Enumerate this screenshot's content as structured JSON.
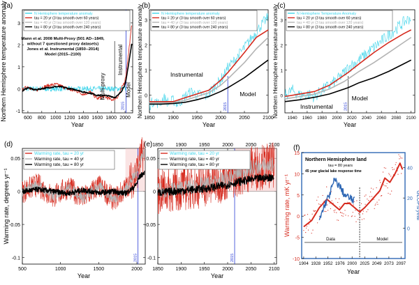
{
  "chart_data": [
    {
      "id": "a",
      "panel_label": "(a)",
      "type": "line",
      "xlabel": "Year",
      "ylabel": "Northern Hemisphere temperature anomaly",
      "xlim": [
        520,
        2110
      ],
      "ylim": [
        -1.1,
        3.6
      ],
      "xticks": [
        600,
        800,
        1000,
        1200,
        1400,
        1600,
        1800,
        2000
      ],
      "yticks": [
        -1,
        0,
        1,
        2,
        3
      ],
      "legend": [
        "N Hemisphere temperature anomaly",
        "tau = 20 yr (3 tau smooth over 60 years)",
        "tau = 40 yr (3 tau smooth over 120 years)",
        "tau = 80 yr (3 tau smooth over 240 years)"
      ],
      "annotation_box": [
        "Mann et al. 2008 Multi-Proxy (501 AD--1849,",
        "without 7 questioned proxy datasets)",
        "Jones et al. Instrumental (1850--2014)",
        "Model (2015--2100)"
      ],
      "labels": [
        "Multi-proxy",
        "Instrumental",
        "Model",
        "2015"
      ],
      "marker_year": 2015,
      "series": [
        {
          "name": "tau = 80 yr (3 tau smooth over 240 years)",
          "x": [
            520,
            600,
            700,
            800,
            900,
            1000,
            1100,
            1200,
            1300,
            1400,
            1500,
            1600,
            1700,
            1800,
            1850,
            1900,
            1950,
            2000,
            2015,
            2050,
            2100
          ],
          "y": [
            -0.1,
            0.05,
            -0.05,
            0.0,
            0.05,
            0.1,
            0.08,
            0.0,
            -0.05,
            -0.15,
            -0.2,
            -0.3,
            -0.3,
            -0.35,
            -0.4,
            -0.3,
            -0.1,
            0.2,
            0.4,
            1.1,
            2.1
          ]
        },
        {
          "name": "tau = 20 yr (3 tau smooth over 60 years)",
          "x": [
            520,
            600,
            700,
            800,
            900,
            1000,
            1100,
            1200,
            1300,
            1400,
            1500,
            1600,
            1700,
            1800,
            1850,
            1900,
            1950,
            2000,
            2015,
            2050,
            2100
          ],
          "y": [
            -0.05,
            0.1,
            -0.1,
            0.05,
            0.15,
            0.2,
            0.1,
            -0.05,
            -0.1,
            -0.25,
            -0.15,
            -0.45,
            -0.35,
            -0.5,
            -0.45,
            -0.35,
            0.0,
            0.4,
            0.7,
            1.6,
            3.0
          ]
        }
      ]
    },
    {
      "id": "b",
      "panel_label": "(b)",
      "type": "line",
      "xlabel": "Year",
      "ylabel": "Northern Hemisphere temperature anomaly",
      "xlim": [
        1850,
        2100
      ],
      "ylim": [
        -0.7,
        3.4
      ],
      "xticks": [
        1850,
        1900,
        1950,
        2000,
        2050,
        2100
      ],
      "yticks": [
        0,
        1,
        2,
        3
      ],
      "legend": [
        "N Hemisphere temperature anomaly",
        "tau = 20 yr (3 tau smooth over 60 years)",
        "tau = 40 yr (3 tau smooth over 120 years)",
        "tau = 80 yr (3 tau smooth over 240 years)"
      ],
      "labels": [
        "Instrumental",
        "Model",
        "2015"
      ],
      "marker_year": 2015,
      "series": [
        {
          "name": "N Hemisphere temperature anomaly",
          "x": [
            1850,
            1860,
            1870,
            1880,
            1890,
            1900,
            1910,
            1920,
            1930,
            1940,
            1950,
            1960,
            1970,
            1980,
            1990,
            2000,
            2010,
            2015,
            2030,
            2050,
            2070,
            2090,
            2100
          ],
          "y": [
            -0.4,
            -0.2,
            -0.35,
            -0.1,
            -0.3,
            -0.2,
            -0.35,
            -0.15,
            0.05,
            0.15,
            0.0,
            0.05,
            -0.05,
            0.2,
            0.4,
            0.6,
            0.9,
            1.1,
            1.4,
            1.9,
            2.4,
            2.9,
            3.1
          ]
        },
        {
          "name": "tau = 20 yr (3 tau smooth over 60 years)",
          "x": [
            1850,
            1875,
            1900,
            1925,
            1950,
            1975,
            2000,
            2015,
            2050,
            2075,
            2100
          ],
          "y": [
            -0.25,
            -0.25,
            -0.25,
            -0.1,
            0.05,
            0.2,
            0.6,
            0.9,
            1.7,
            2.3,
            2.6
          ]
        },
        {
          "name": "tau = 40 yr (3 tau smooth over 120 years)",
          "x": [
            1850,
            1875,
            1900,
            1925,
            1950,
            1975,
            2000,
            2015,
            2050,
            2075,
            2100
          ],
          "y": [
            -0.3,
            -0.3,
            -0.28,
            -0.2,
            -0.05,
            0.1,
            0.4,
            0.65,
            1.3,
            1.85,
            2.3
          ]
        },
        {
          "name": "tau = 80 yr (3 tau smooth over 240 years)",
          "x": [
            1850,
            1875,
            1900,
            1925,
            1950,
            1975,
            2000,
            2015,
            2050,
            2075,
            2100
          ],
          "y": [
            -0.35,
            -0.35,
            -0.33,
            -0.28,
            -0.18,
            -0.05,
            0.15,
            0.3,
            0.7,
            1.05,
            1.4
          ]
        }
      ]
    },
    {
      "id": "c",
      "panel_label": "(c)",
      "type": "line",
      "xlabel": "Year",
      "ylabel": "Northern Hemisphere temperature anomaly",
      "xlim": [
        1930,
        2105
      ],
      "ylim": [
        -0.7,
        3.4
      ],
      "xticks": [
        1940,
        1960,
        1980,
        2000,
        2020,
        2040,
        2060,
        2080,
        2100
      ],
      "yticks": [
        0,
        1,
        2,
        3
      ],
      "legend": [
        "N Hemisphere Temperature Anomaly",
        "tau = 20 yr (3 tau smooth over 60 years)",
        "tau = 40 yr (3 tau smooth over 120 years)",
        "tau = 80 yr (3 tau smooth over 240 years)"
      ],
      "labels": [
        "Instrumental",
        "Model",
        "2015"
      ],
      "marker_year": 2015,
      "series": [
        {
          "name": "N Hemisphere Temperature Anomaly",
          "x": [
            1930,
            1940,
            1950,
            1960,
            1970,
            1980,
            1990,
            2000,
            2010,
            2015,
            2030,
            2050,
            2070,
            2090,
            2100
          ],
          "y": [
            0.0,
            0.2,
            0.0,
            0.05,
            -0.05,
            0.2,
            0.4,
            0.6,
            0.9,
            1.1,
            1.4,
            1.9,
            2.4,
            2.9,
            3.1
          ]
        },
        {
          "name": "tau = 20 yr (3 tau smooth over 60 years)",
          "x": [
            1930,
            1950,
            1970,
            1990,
            2010,
            2015,
            2030,
            2050,
            2070,
            2090,
            2100
          ],
          "y": [
            -0.05,
            0.05,
            0.15,
            0.4,
            0.8,
            0.9,
            1.25,
            1.7,
            2.1,
            2.45,
            2.6
          ]
        },
        {
          "name": "tau = 40 yr (3 tau smooth over 120 years)",
          "x": [
            1930,
            1950,
            1970,
            1990,
            2010,
            2015,
            2030,
            2050,
            2070,
            2090,
            2100
          ],
          "y": [
            -0.15,
            -0.05,
            0.05,
            0.25,
            0.55,
            0.65,
            0.95,
            1.3,
            1.7,
            2.1,
            2.3
          ]
        },
        {
          "name": "tau = 80 yr (3 tau smooth over 240 years)",
          "x": [
            1930,
            1950,
            1970,
            1990,
            2010,
            2015,
            2030,
            2050,
            2070,
            2090,
            2100
          ],
          "y": [
            -0.25,
            -0.18,
            -0.08,
            0.05,
            0.25,
            0.3,
            0.5,
            0.7,
            0.95,
            1.25,
            1.4
          ]
        }
      ]
    },
    {
      "id": "d",
      "panel_label": "(d)",
      "type": "line",
      "xlabel": "Year",
      "ylabel": "Warming rate, degrees yr⁻¹",
      "xlim": [
        500,
        2110
      ],
      "ylim": [
        -0.11,
        0.065
      ],
      "xticks": [
        500,
        1000,
        1500,
        2000
      ],
      "yticks": [
        -0.1,
        -0.05,
        0,
        0.05
      ],
      "legend": [
        "Warming rate, tau = 20 yr",
        "Warming rate, tau = 40 yr",
        "Warming rate, tau = 80 yr"
      ],
      "labels": [
        "2015"
      ],
      "marker_year": 2015,
      "series": [
        {
          "name": "Warming rate, tau = 80 yr",
          "x": [
            500,
            700,
            900,
            1100,
            1300,
            1500,
            1700,
            1850,
            1950,
            2000,
            2015,
            2050,
            2100
          ],
          "y": [
            0.0,
            0.003,
            0.0,
            -0.003,
            0.002,
            -0.002,
            0.0,
            -0.003,
            0.005,
            0.012,
            0.018,
            0.024,
            0.028
          ]
        },
        {
          "name": "Warming rate, tau = 20 yr",
          "x": [
            500,
            700,
            900,
            1100,
            1300,
            1500,
            1700,
            1850,
            1950,
            2000,
            2015,
            2050,
            2100
          ],
          "y": [
            0.0,
            0.01,
            -0.008,
            0.006,
            -0.01,
            0.008,
            -0.012,
            0.004,
            0.02,
            0.03,
            0.035,
            0.05,
            0.06
          ]
        }
      ]
    },
    {
      "id": "e",
      "panel_label": "(e)",
      "type": "line",
      "xlabel": "Year",
      "ylabel": "",
      "xlim": [
        1850,
        2105
      ],
      "ylim": [
        -0.11,
        0.065
      ],
      "xticks": [
        1850,
        1900,
        1950,
        2000,
        2050,
        2100
      ],
      "yticks": [
        -0.1,
        -0.05,
        0,
        0.05
      ],
      "legend": [
        "Warming rate, tau = 20 yr",
        "Warming rate, tau = 40 yr",
        "Warming rate, tau = 80 yr"
      ],
      "labels": [
        "2015"
      ],
      "marker_year": 2015,
      "series": [
        {
          "name": "Warming rate, tau = 80 yr",
          "x": [
            1850,
            1900,
            1950,
            2000,
            2015,
            2050,
            2100
          ],
          "y": [
            -0.002,
            0.001,
            0.004,
            0.01,
            0.013,
            0.018,
            0.022
          ]
        },
        {
          "name": "Warming rate, tau = 20 yr",
          "x": [
            1850,
            1900,
            1950,
            2000,
            2015,
            2050,
            2100
          ],
          "y": [
            0.0,
            0.005,
            0.01,
            0.02,
            0.025,
            0.035,
            0.04
          ]
        }
      ]
    },
    {
      "id": "f",
      "panel_label": "(f)",
      "type": "line",
      "title": "Northern Hemisphere land",
      "subtitle": "tau = 80 years",
      "note": "45 year glacial lake response time",
      "xlabel": "Year",
      "ylabel": "Warming rate, mK yr⁻¹",
      "y2label": "GLOFs/year",
      "xlim": [
        1900,
        2105
      ],
      "ylim": [
        -10,
        15
      ],
      "y2lim": [
        -20,
        50
      ],
      "xticks": [
        1904,
        1928,
        1952,
        1976,
        2000,
        2025,
        2049,
        2073,
        2097
      ],
      "yticks": [
        -10,
        -5,
        0,
        5,
        10,
        15
      ],
      "y2ticks": [
        0,
        20,
        40
      ],
      "labels": [
        "Data",
        "Model"
      ],
      "series": [
        {
          "name": "Warming rate",
          "x": [
            1904,
            1920,
            1935,
            1950,
            1965,
            1975,
            1985,
            1995,
            2005,
            2015,
            2025,
            2040,
            2055,
            2065,
            2075,
            2085,
            2095,
            2100
          ],
          "y": [
            -2.5,
            -1,
            2,
            4,
            2.5,
            1.5,
            3,
            3,
            2,
            1,
            2,
            4,
            6,
            9,
            8,
            10,
            12.5,
            11
          ]
        },
        {
          "name": "GLOFs/year",
          "x": [
            1935,
            1945,
            1955,
            1965,
            1975,
            1985,
            1995,
            2005
          ],
          "y": [
            5,
            15,
            22,
            32,
            28,
            22,
            20,
            18
          ]
        }
      ]
    }
  ]
}
